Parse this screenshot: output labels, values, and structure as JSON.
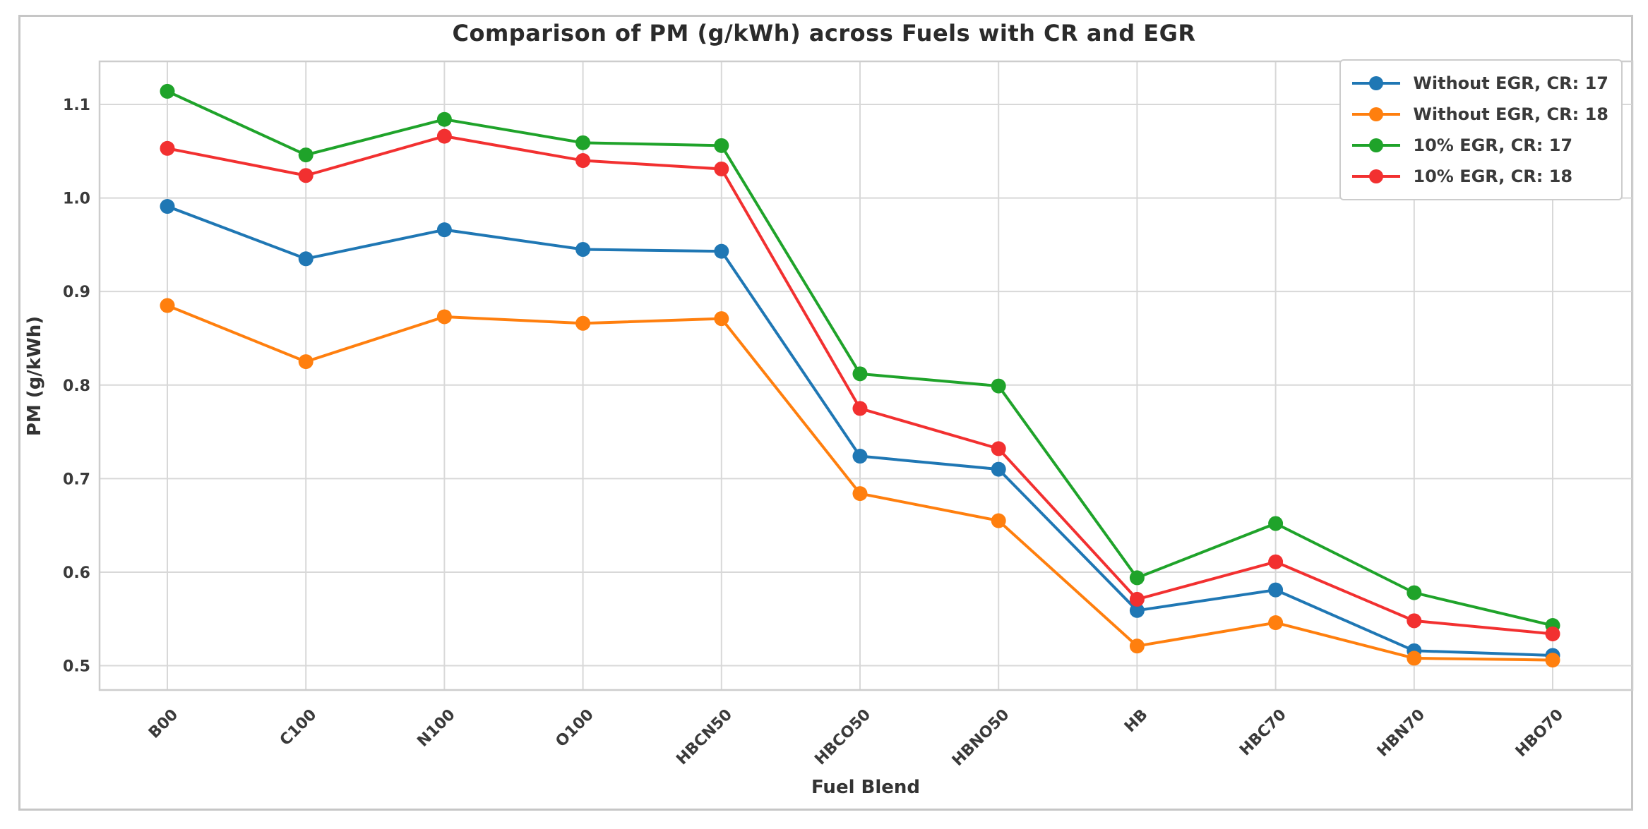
{
  "chart_data": {
    "type": "line",
    "title": "Comparison of PM (g/kWh) across Fuels with CR and EGR",
    "xlabel": "Fuel Blend",
    "ylabel": "PM (g/kWh)",
    "categories": [
      "B00",
      "C100",
      "N100",
      "O100",
      "HBCN50",
      "HBCO50",
      "HBNO50",
      "HB",
      "HBC70",
      "HBN70",
      "HBO70"
    ],
    "series": [
      {
        "name": "Without EGR, CR: 17",
        "color": "#1f77b4",
        "values": [
          0.991,
          0.935,
          0.966,
          0.945,
          0.943,
          0.724,
          0.71,
          0.559,
          0.581,
          0.516,
          0.511
        ]
      },
      {
        "name": "Without EGR, CR: 18",
        "color": "#ff7f0e",
        "values": [
          0.885,
          0.825,
          0.873,
          0.866,
          0.871,
          0.684,
          0.655,
          0.521,
          0.546,
          0.508,
          0.506
        ]
      },
      {
        "name": "10% EGR, CR: 17",
        "color": "#1fa32a",
        "values": [
          1.114,
          1.046,
          1.084,
          1.059,
          1.056,
          0.812,
          0.799,
          0.594,
          0.652,
          0.578,
          0.543
        ]
      },
      {
        "name": "10% EGR, CR: 18",
        "color": "#f23030",
        "values": [
          1.053,
          1.024,
          1.066,
          1.04,
          1.031,
          0.775,
          0.732,
          0.571,
          0.611,
          0.548,
          0.534
        ]
      }
    ],
    "y_ticks": [
      0.5,
      0.6,
      0.7,
      0.8,
      0.9,
      1.0,
      1.1
    ],
    "ylim": [
      0.474,
      1.146
    ],
    "grid": true,
    "legend_position": "upper right"
  }
}
